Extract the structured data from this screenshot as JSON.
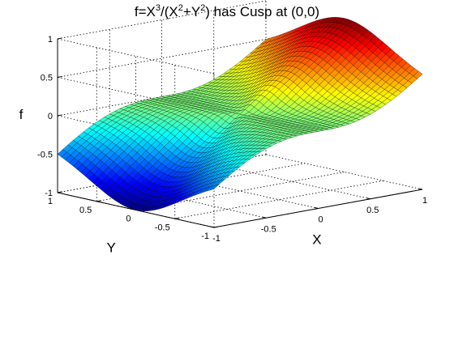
{
  "title": {
    "parts": [
      {
        "text": "f=X",
        "sup": false
      },
      {
        "text": "3",
        "sup": true
      },
      {
        "text": "/(X",
        "sup": false
      },
      {
        "text": "2",
        "sup": true
      },
      {
        "text": "+Y",
        "sup": false
      },
      {
        "text": "2",
        "sup": true
      },
      {
        "text": ") has Cusp at (0,0)",
        "sup": false
      }
    ]
  },
  "chart_data": {
    "type": "surface",
    "function": "f = X^3/(X^2+Y^2)",
    "colormap": "jet",
    "grid": true,
    "box": true,
    "xlabel": "X",
    "ylabel": "Y",
    "zlabel": "f",
    "xlim": [
      -1,
      1
    ],
    "ylim": [
      -1,
      1
    ],
    "zlim": [
      -1,
      1
    ],
    "x_ticks": [
      {
        "v": -1,
        "label": "-1"
      },
      {
        "v": -0.5,
        "label": "-0.5"
      },
      {
        "v": 0,
        "label": "0"
      },
      {
        "v": 0.5,
        "label": "0.5"
      },
      {
        "v": 1,
        "label": "1"
      }
    ],
    "y_ticks": [
      {
        "v": -1,
        "label": "-1"
      },
      {
        "v": -0.5,
        "label": "-0.5"
      },
      {
        "v": 0,
        "label": "0"
      },
      {
        "v": 0.5,
        "label": "0.5"
      },
      {
        "v": 1,
        "label": "1"
      }
    ],
    "z_ticks": [
      {
        "v": -1,
        "label": "-1"
      },
      {
        "v": -0.5,
        "label": "-0.5"
      },
      {
        "v": 0,
        "label": "0"
      },
      {
        "v": 0.5,
        "label": "0.5"
      },
      {
        "v": 1,
        "label": "1"
      }
    ],
    "grid_points": 41
  }
}
